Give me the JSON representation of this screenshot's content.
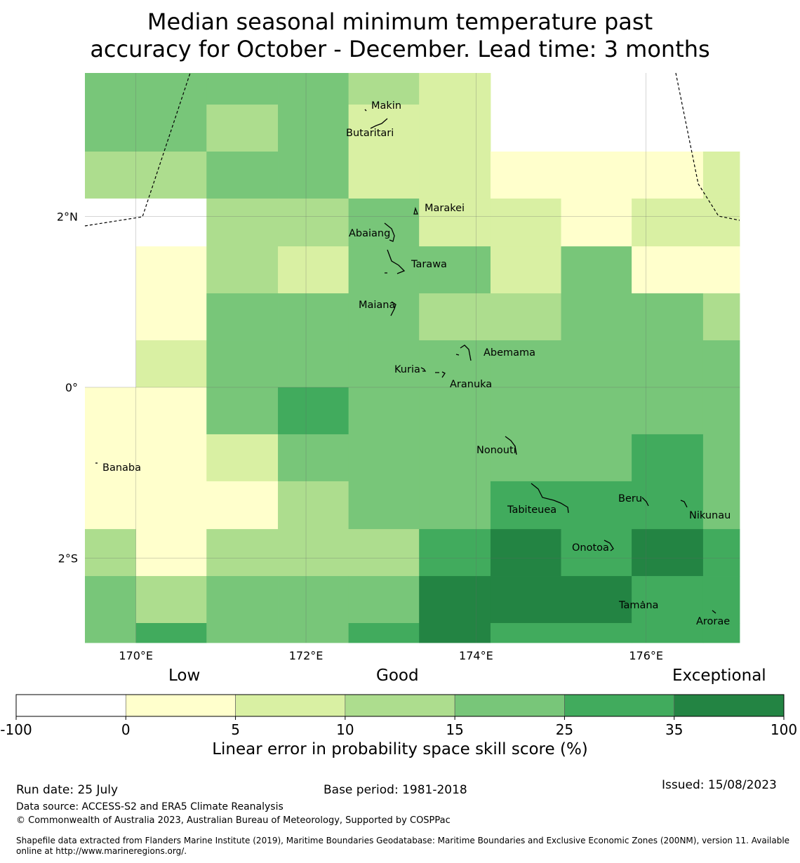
{
  "title": {
    "line1": "Median seasonal minimum temperature past",
    "line2": "accuracy for October - December. Lead time: 3 months"
  },
  "map": {
    "lon_range": [
      169.4,
      177.1
    ],
    "lat_range": [
      -2.99,
      3.68
    ],
    "x_ticks": [
      {
        "value": 170,
        "label": "170°E"
      },
      {
        "value": 172,
        "label": "172°E"
      },
      {
        "value": 174,
        "label": "174°E"
      },
      {
        "value": 176,
        "label": "176°E"
      }
    ],
    "y_ticks": [
      {
        "value": 2,
        "label": "2°N"
      },
      {
        "value": 0,
        "label": "0°"
      },
      {
        "value": -2,
        "label": "2°S"
      }
    ],
    "cell_lon_edges": [
      169.4,
      170.0,
      170.83,
      171.67,
      172.5,
      173.33,
      174.17,
      175.0,
      175.83,
      176.67,
      177.1
    ],
    "cell_lat_edges": [
      3.68,
      3.31,
      2.76,
      2.21,
      1.65,
      1.1,
      0.55,
      0.0,
      -0.55,
      -1.1,
      -1.66,
      -2.21,
      -2.76,
      -2.99
    ],
    "grid_categories": [
      [
        4,
        4,
        4,
        4,
        3,
        2,
        -1,
        -1,
        -1,
        -1
      ],
      [
        4,
        4,
        3,
        4,
        2,
        2,
        -1,
        -1,
        -1,
        -1
      ],
      [
        3,
        3,
        4,
        4,
        2,
        2,
        1,
        1,
        1,
        2
      ],
      [
        0,
        0,
        3,
        3,
        4,
        2,
        2,
        1,
        2,
        2
      ],
      [
        0,
        1,
        3,
        2,
        4,
        4,
        2,
        4,
        1,
        1
      ],
      [
        0,
        1,
        4,
        4,
        4,
        3,
        3,
        4,
        4,
        3
      ],
      [
        0,
        2,
        4,
        4,
        4,
        4,
        4,
        4,
        4,
        4
      ],
      [
        1,
        1,
        4,
        5,
        4,
        4,
        4,
        4,
        4,
        4
      ],
      [
        1,
        1,
        2,
        4,
        4,
        4,
        4,
        4,
        5,
        4
      ],
      [
        1,
        1,
        1,
        3,
        4,
        4,
        5,
        5,
        5,
        4
      ],
      [
        3,
        1,
        3,
        3,
        3,
        5,
        6,
        5,
        6,
        5
      ],
      [
        4,
        3,
        4,
        4,
        4,
        6,
        6,
        6,
        5,
        5
      ],
      [
        4,
        5,
        4,
        4,
        5,
        6,
        5,
        5,
        5,
        5
      ]
    ],
    "islands": [
      {
        "name": "Makin",
        "lon": 173.0,
        "lat": 3.32
      },
      {
        "name": "Butaritari",
        "lon": 172.78,
        "lat": 2.98
      },
      {
        "name": "Marakei",
        "lon": 173.28,
        "lat": 2.0
      },
      {
        "name": "Abaiang",
        "lon": 172.93,
        "lat": 1.82
      },
      {
        "name": "Tarawa",
        "lon": 173.05,
        "lat": 1.45
      },
      {
        "name": "Maiana",
        "lon": 173.02,
        "lat": 0.92
      },
      {
        "name": "Abemama",
        "lon": 173.9,
        "lat": 0.4
      },
      {
        "name": "Kuria",
        "lon": 173.4,
        "lat": 0.24
      },
      {
        "name": "Aranuka",
        "lon": 173.6,
        "lat": 0.17
      },
      {
        "name": "Banaba",
        "lon": 169.53,
        "lat": -0.86
      },
      {
        "name": "Nonouti",
        "lon": 174.42,
        "lat": -0.68
      },
      {
        "name": "Tabiteuea",
        "lon": 174.83,
        "lat": -1.3
      },
      {
        "name": "Beru",
        "lon": 176.0,
        "lat": -1.33
      },
      {
        "name": "Nikunau",
        "lon": 176.45,
        "lat": -1.38
      },
      {
        "name": "Onotoa",
        "lon": 175.58,
        "lat": -1.85
      },
      {
        "name": "Tamana",
        "lon": 175.98,
        "lat": -2.5
      },
      {
        "name": "Arorae",
        "lon": 176.82,
        "lat": -2.65
      }
    ]
  },
  "colorbar": {
    "category_labels": {
      "low": "Low",
      "good": "Good",
      "exceptional": "Exceptional"
    },
    "ticks": [
      "-100",
      "0",
      "5",
      "10",
      "15",
      "25",
      "35",
      "100"
    ],
    "colors": [
      "#ffffff",
      "#ffffcc",
      "#d9f0a3",
      "#addd8e",
      "#78c679",
      "#41ab5d",
      "#238443"
    ],
    "label": "Linear error in probability space skill score (%)"
  },
  "footer": {
    "run_date": "Run date: 25 July",
    "base_period": "Base period: 1981-2018",
    "issued": "Issued: 15/08/2023",
    "data_source": "Data source: ACCESS-S2 and ERA5 Climate Reanalysis",
    "copyright": "© Commonwealth of Australia 2023, Australian Bureau of Meteorology, Supported by COSPPac",
    "shapefile_line1": "Shapefile data extracted from Flanders Marine Institute (2019), Maritime Boundaries Geodatabase: Maritime Boundaries and Exclusive Economic Zones (200NM), version 11. Available",
    "shapefile_line2": "online at http://www.marineregions.org/."
  }
}
